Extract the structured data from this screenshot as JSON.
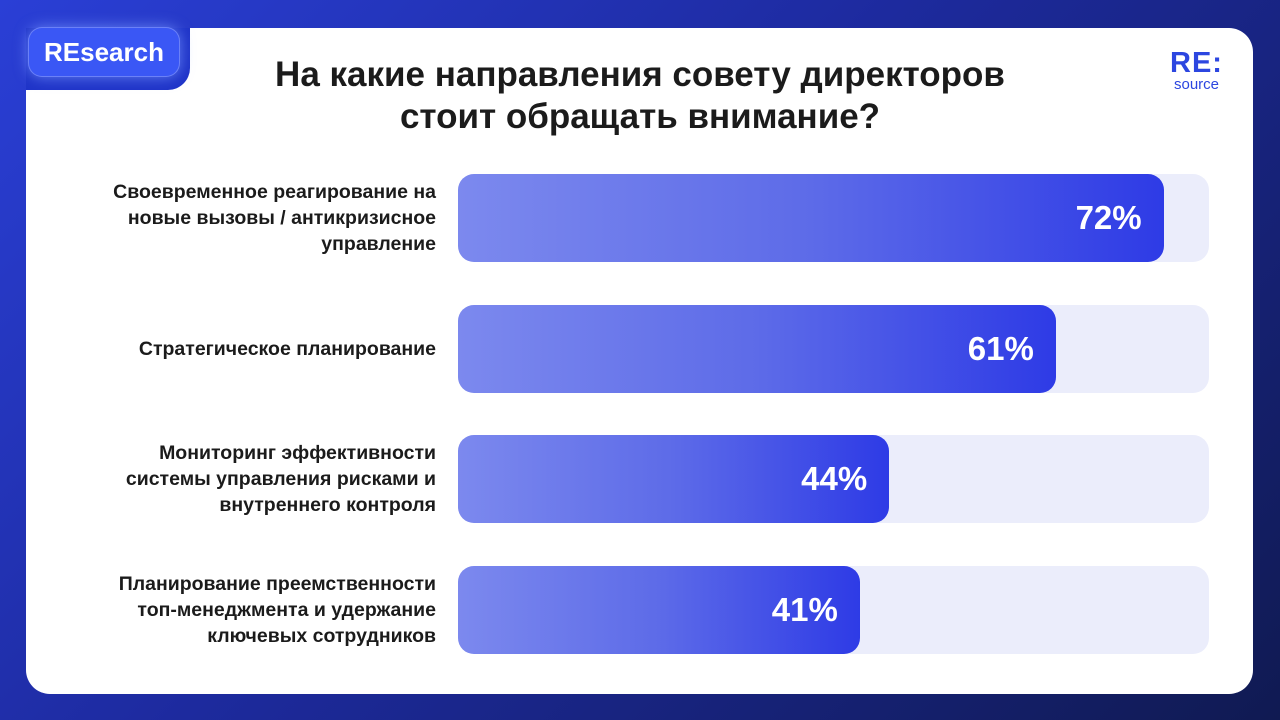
{
  "badge": "REsearch",
  "logo": {
    "main": "RE:",
    "sub": "source"
  },
  "chart_data": {
    "type": "bar",
    "orientation": "horizontal",
    "title": "На какие направления совету директоров стоит обращать внимание?",
    "title_lines": [
      "На какие направления совету директоров",
      "стоит обращать внимание?"
    ],
    "categories": [
      "Своевременное реагирование на новые вызовы / антикризисное управление",
      "Стратегическое планирование",
      "Мониторинг эффективности системы управления рисками и внутреннего контроля",
      "Планирование преемственности топ-менеджмента и удержание ключевых сотрудников"
    ],
    "category_lines": [
      [
        "Своевременное реагирование на",
        "новые вызовы / антикризисное",
        "управление"
      ],
      [
        "Стратегическое планирование"
      ],
      [
        "Мониторинг эффективности",
        "системы управления рисками и",
        "внутреннего контроля"
      ],
      [
        "Планирование преемственности",
        "топ-менеджмента и удержание",
        "ключевых сотрудников"
      ]
    ],
    "values": [
      72,
      61,
      44,
      41
    ],
    "value_labels": [
      "72%",
      "61%",
      "44%",
      "41%"
    ],
    "xlim": [
      0,
      100
    ],
    "grid": false,
    "legend": "none",
    "colors": {
      "bar_start": "#7c89ee",
      "bar_end": "#2e3be6",
      "track": "#ebedfb"
    }
  }
}
